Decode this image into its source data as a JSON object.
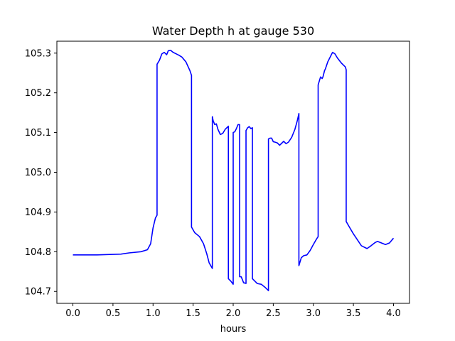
{
  "chart_data": {
    "type": "line",
    "title": "Water Depth h at gauge 530",
    "xlabel": "hours",
    "ylabel": "",
    "xlim": [
      -0.2,
      4.2
    ],
    "ylim": [
      104.67,
      105.33
    ],
    "xticks": [
      0.0,
      0.5,
      1.0,
      1.5,
      2.0,
      2.5,
      3.0,
      3.5,
      4.0
    ],
    "xtick_labels": [
      "0.0",
      "0.5",
      "1.0",
      "1.5",
      "2.0",
      "2.5",
      "3.0",
      "3.5",
      "4.0"
    ],
    "yticks": [
      104.7,
      104.8,
      104.9,
      105.0,
      105.1,
      105.2,
      105.3
    ],
    "ytick_labels": [
      "104.7",
      "104.8",
      "104.9",
      "105.0",
      "105.1",
      "105.2",
      "105.3"
    ],
    "grid": false,
    "line_color": "#0000ff",
    "series": [
      {
        "x": [
          0.0,
          0.3,
          0.6,
          0.7,
          0.85,
          0.93,
          0.97,
          1.0,
          1.03,
          1.05,
          1.05,
          1.08,
          1.11,
          1.14,
          1.17,
          1.19,
          1.22,
          1.25,
          1.28,
          1.32,
          1.36,
          1.41,
          1.46,
          1.48,
          1.48,
          1.52,
          1.58,
          1.63,
          1.67,
          1.7,
          1.74,
          1.74,
          1.75,
          1.77,
          1.79,
          1.81,
          1.84,
          1.87,
          1.9,
          1.93,
          1.94,
          1.94,
          1.97,
          2.0,
          2.0,
          2.02,
          2.04,
          2.06,
          2.08,
          2.08,
          2.1,
          2.13,
          2.16,
          2.16,
          2.18,
          2.2,
          2.22,
          2.24,
          2.24,
          2.27,
          2.3,
          2.35,
          2.4,
          2.44,
          2.44,
          2.46,
          2.48,
          2.5,
          2.52,
          2.55,
          2.58,
          2.61,
          2.63,
          2.66,
          2.69,
          2.73,
          2.77,
          2.8,
          2.82,
          2.82,
          2.85,
          2.88,
          2.92,
          2.96,
          3.0,
          3.04,
          3.06,
          3.06,
          3.09,
          3.11,
          3.12,
          3.14,
          3.15,
          3.18,
          3.21,
          3.24,
          3.27,
          3.3,
          3.35,
          3.4,
          3.41,
          3.41,
          3.45,
          3.5,
          3.55,
          3.6,
          3.67,
          3.72,
          3.77,
          3.8,
          3.85,
          3.9,
          3.95,
          4.0
        ],
        "y": [
          104.792,
          104.792,
          104.794,
          104.797,
          104.8,
          104.805,
          104.82,
          104.86,
          104.885,
          104.892,
          105.272,
          105.282,
          105.298,
          105.302,
          105.296,
          105.306,
          105.307,
          105.302,
          105.299,
          105.295,
          105.29,
          105.278,
          105.256,
          105.244,
          104.862,
          104.848,
          104.838,
          104.82,
          104.795,
          104.772,
          104.758,
          105.14,
          105.13,
          105.12,
          105.122,
          105.108,
          105.095,
          105.098,
          105.108,
          105.114,
          105.116,
          104.732,
          104.726,
          104.718,
          105.1,
          105.102,
          105.11,
          105.12,
          105.12,
          104.737,
          104.737,
          104.722,
          104.72,
          105.105,
          105.112,
          105.115,
          105.11,
          105.112,
          104.732,
          104.726,
          104.72,
          104.718,
          104.71,
          104.702,
          105.084,
          105.086,
          105.086,
          105.077,
          105.076,
          105.074,
          105.068,
          105.074,
          105.078,
          105.072,
          105.076,
          105.088,
          105.108,
          105.13,
          105.148,
          104.765,
          104.785,
          104.79,
          104.792,
          104.803,
          104.818,
          104.832,
          104.838,
          105.22,
          105.24,
          105.236,
          105.24,
          105.256,
          105.26,
          105.278,
          105.29,
          105.302,
          105.298,
          105.288,
          105.275,
          105.265,
          105.258,
          104.876,
          104.862,
          104.845,
          104.83,
          104.815,
          104.808,
          104.815,
          104.823,
          104.826,
          104.822,
          104.818,
          104.822,
          104.834
        ]
      }
    ]
  }
}
